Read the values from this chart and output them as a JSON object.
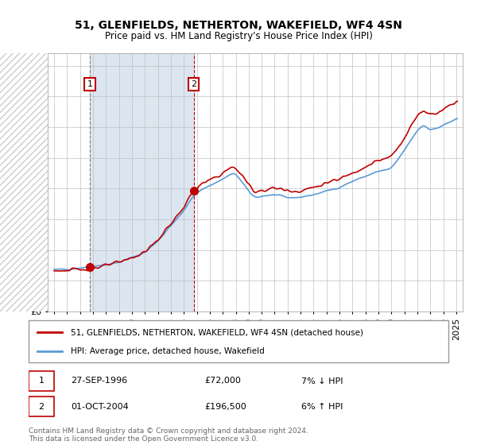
{
  "title": "51, GLENFIELDS, NETHERTON, WAKEFIELD, WF4 4SN",
  "subtitle": "Price paid vs. HM Land Registry's House Price Index (HPI)",
  "legend_line1": "51, GLENFIELDS, NETHERTON, WAKEFIELD, WF4 4SN (detached house)",
  "legend_line2": "HPI: Average price, detached house, Wakefield",
  "transaction1_date": "27-SEP-1996",
  "transaction1_price": 72000,
  "transaction1_hpi": "7% ↓ HPI",
  "transaction1_year": 1996.75,
  "transaction2_date": "01-OCT-2004",
  "transaction2_price": 196500,
  "transaction2_hpi": "6% ↑ HPI",
  "transaction2_year": 2004.75,
  "footer": "Contains HM Land Registry data © Crown copyright and database right 2024.\nThis data is licensed under the Open Government Licence v3.0.",
  "hpi_color": "#5b9bd5",
  "price_color": "#c00000",
  "dot_color": "#c00000",
  "vline1_color": "#808080",
  "vline2_color": "#c00000",
  "shading_color": "#dce6f1",
  "grid_color": "#c0c0c0",
  "bg_color": "#ffffff",
  "ylim_min": 0,
  "ylim_max": 420000,
  "xlim_min": 1993.5,
  "xlim_max": 2025.5
}
